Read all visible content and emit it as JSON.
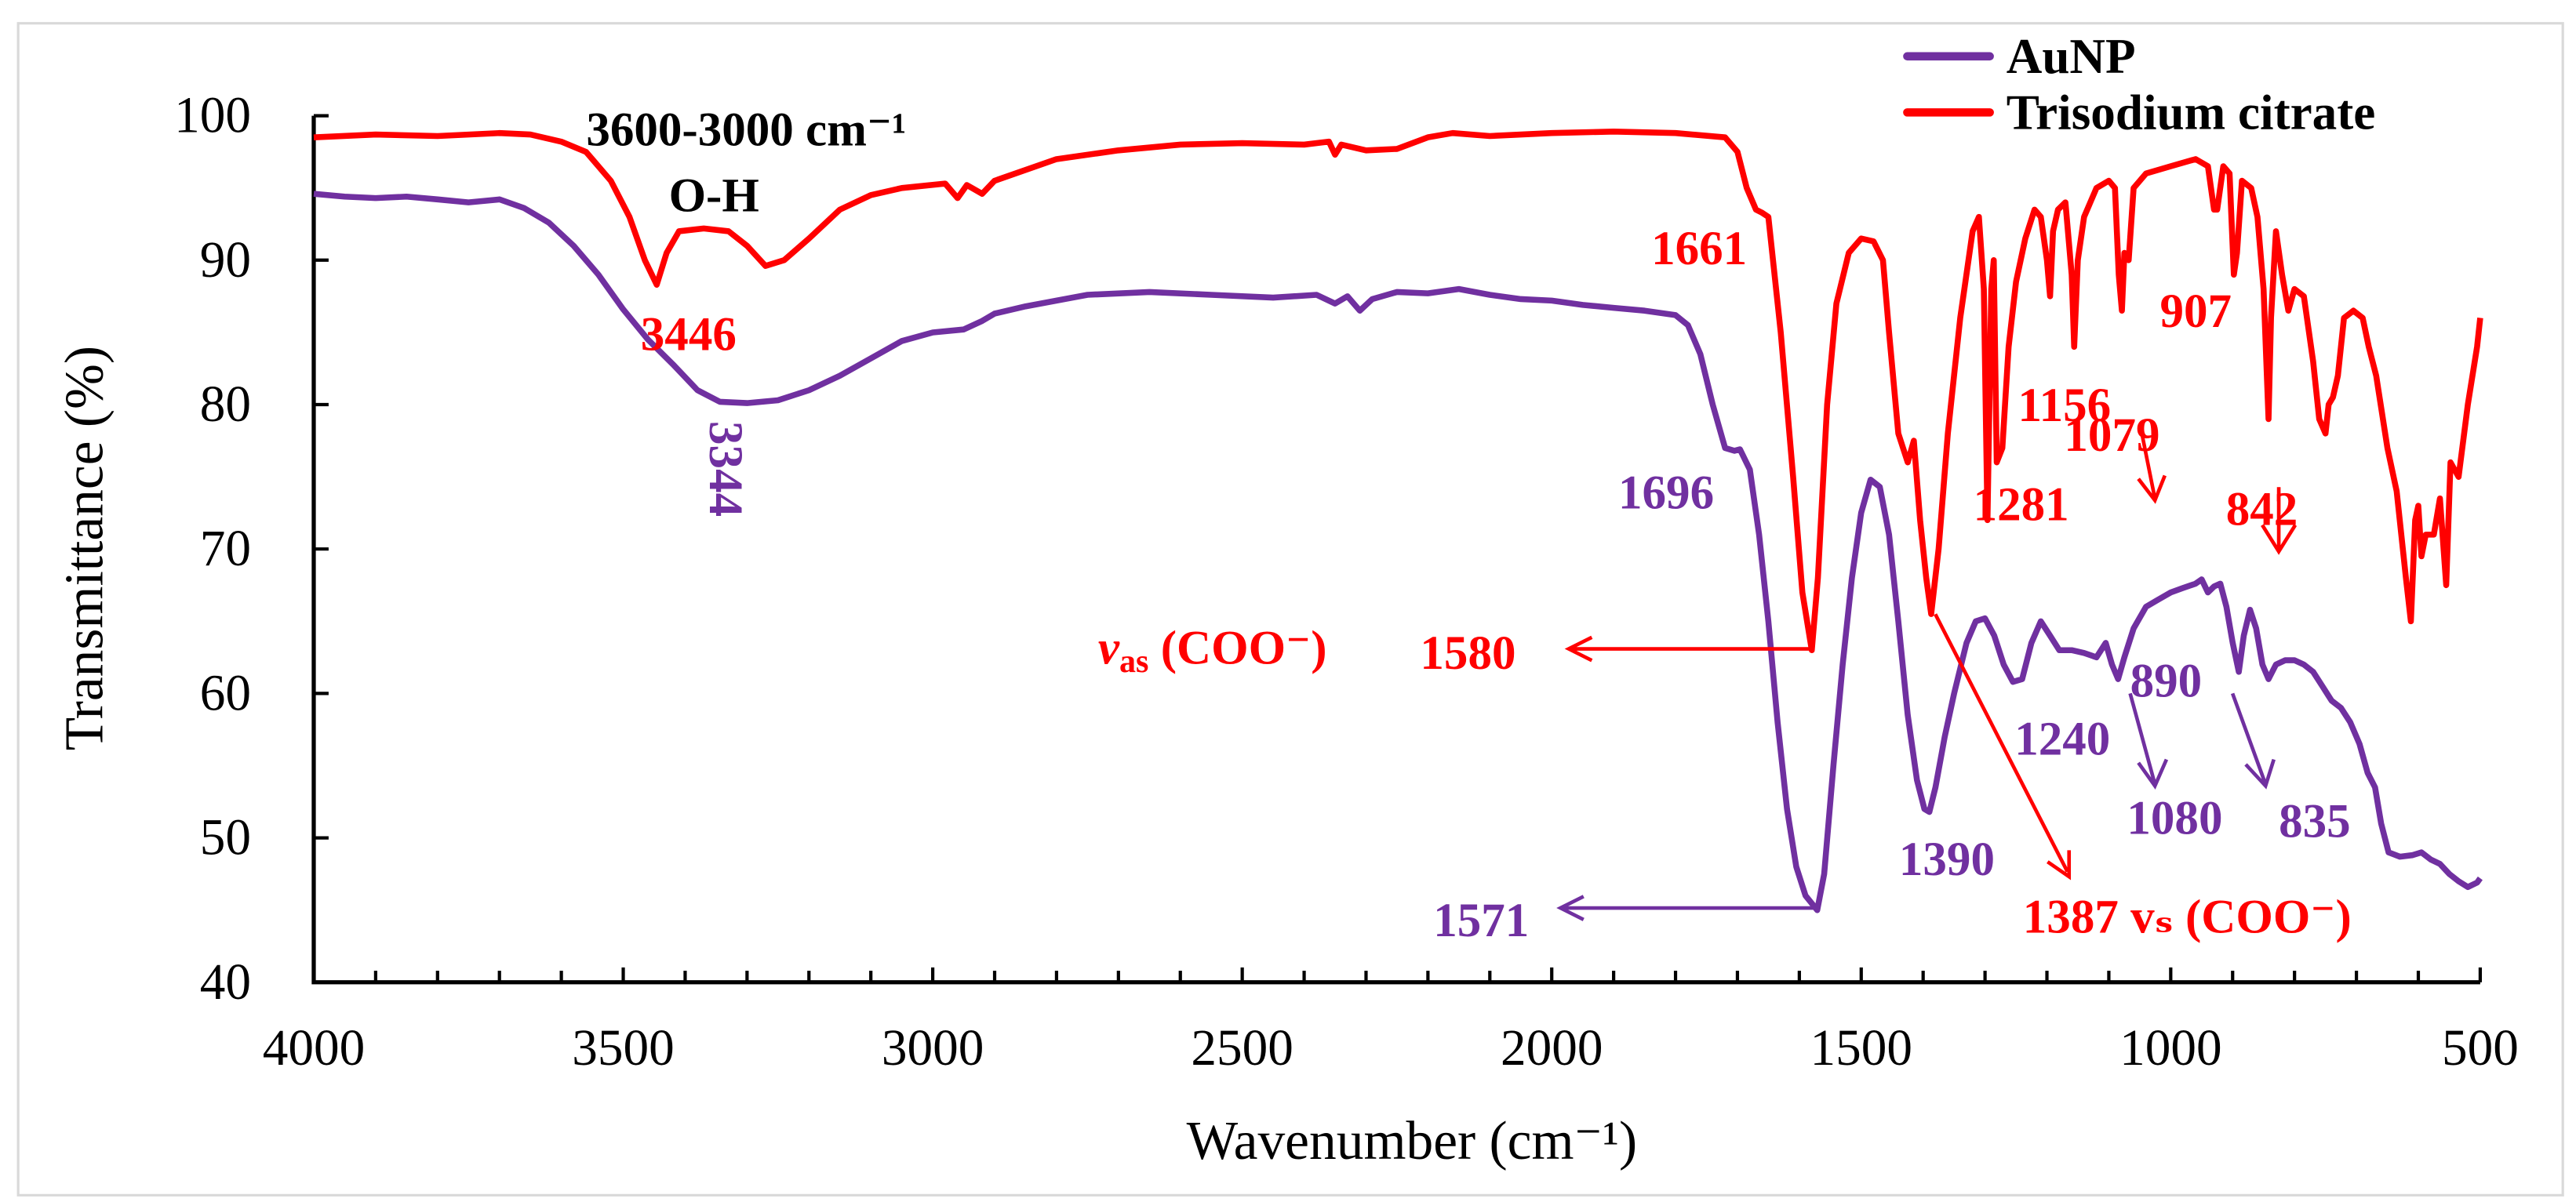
{
  "chart_data": {
    "type": "line",
    "xlabel": "Wavenumber (cm⁻¹)",
    "ylabel": "Transmittance (%)",
    "xlim": [
      4000,
      500
    ],
    "ylim": [
      40,
      100
    ],
    "x_reversed": true,
    "grid": false,
    "legend_position": "top-right",
    "x_ticks": [
      "4000",
      "3500",
      "3000",
      "2500",
      "2000",
      "1500",
      "1000",
      "500"
    ],
    "y_ticks": [
      "100",
      "90",
      "80",
      "70",
      "60",
      "50",
      "40"
    ],
    "series": [
      {
        "name": "AuNP",
        "color": "#7030a0",
        "points": [
          [
            4000,
            94.6
          ],
          [
            3950,
            94.4
          ],
          [
            3900,
            94.3
          ],
          [
            3850,
            94.4
          ],
          [
            3800,
            94.2
          ],
          [
            3750,
            94.0
          ],
          [
            3700,
            94.2
          ],
          [
            3660,
            93.6
          ],
          [
            3620,
            92.6
          ],
          [
            3580,
            91.0
          ],
          [
            3540,
            89.0
          ],
          [
            3500,
            86.6
          ],
          [
            3460,
            84.5
          ],
          [
            3420,
            82.8
          ],
          [
            3380,
            81.0
          ],
          [
            3344,
            80.2
          ],
          [
            3300,
            80.1
          ],
          [
            3250,
            80.3
          ],
          [
            3200,
            81.0
          ],
          [
            3150,
            82.0
          ],
          [
            3100,
            83.2
          ],
          [
            3050,
            84.4
          ],
          [
            3000,
            85.0
          ],
          [
            2950,
            85.2
          ],
          [
            2920,
            85.8
          ],
          [
            2900,
            86.3
          ],
          [
            2850,
            86.8
          ],
          [
            2800,
            87.2
          ],
          [
            2750,
            87.6
          ],
          [
            2650,
            87.8
          ],
          [
            2550,
            87.6
          ],
          [
            2450,
            87.4
          ],
          [
            2380,
            87.6
          ],
          [
            2350,
            87.0
          ],
          [
            2330,
            87.5
          ],
          [
            2310,
            86.5
          ],
          [
            2290,
            87.3
          ],
          [
            2250,
            87.8
          ],
          [
            2200,
            87.7
          ],
          [
            2150,
            88.0
          ],
          [
            2100,
            87.6
          ],
          [
            2050,
            87.3
          ],
          [
            2000,
            87.2
          ],
          [
            1950,
            86.9
          ],
          [
            1900,
            86.7
          ],
          [
            1850,
            86.5
          ],
          [
            1800,
            86.2
          ],
          [
            1780,
            85.5
          ],
          [
            1760,
            83.5
          ],
          [
            1740,
            80.0
          ],
          [
            1720,
            77.0
          ],
          [
            1705,
            76.8
          ],
          [
            1696,
            76.9
          ],
          [
            1680,
            75.5
          ],
          [
            1665,
            71.0
          ],
          [
            1650,
            65.0
          ],
          [
            1635,
            58.0
          ],
          [
            1620,
            52.0
          ],
          [
            1605,
            48.0
          ],
          [
            1590,
            46.0
          ],
          [
            1571,
            45.0
          ],
          [
            1560,
            47.5
          ],
          [
            1545,
            55.0
          ],
          [
            1530,
            62.0
          ],
          [
            1515,
            68.0
          ],
          [
            1500,
            72.5
          ],
          [
            1485,
            74.8
          ],
          [
            1470,
            74.3
          ],
          [
            1455,
            71.0
          ],
          [
            1440,
            65.0
          ],
          [
            1425,
            58.5
          ],
          [
            1410,
            54.0
          ],
          [
            1398,
            52.0
          ],
          [
            1390,
            51.8
          ],
          [
            1380,
            53.5
          ],
          [
            1365,
            57.0
          ],
          [
            1350,
            60.0
          ],
          [
            1330,
            63.5
          ],
          [
            1315,
            65.0
          ],
          [
            1300,
            65.2
          ],
          [
            1285,
            64.0
          ],
          [
            1270,
            62.0
          ],
          [
            1255,
            60.8
          ],
          [
            1240,
            61.0
          ],
          [
            1225,
            63.5
          ],
          [
            1210,
            65.0
          ],
          [
            1195,
            64.0
          ],
          [
            1180,
            63.0
          ],
          [
            1160,
            63.0
          ],
          [
            1140,
            62.8
          ],
          [
            1120,
            62.5
          ],
          [
            1105,
            63.5
          ],
          [
            1095,
            62.0
          ],
          [
            1085,
            61.0
          ],
          [
            1075,
            62.5
          ],
          [
            1060,
            64.5
          ],
          [
            1040,
            66.0
          ],
          [
            1020,
            66.5
          ],
          [
            1000,
            67.0
          ],
          [
            980,
            67.3
          ],
          [
            960,
            67.6
          ],
          [
            950,
            67.9
          ],
          [
            940,
            67.0
          ],
          [
            930,
            67.4
          ],
          [
            920,
            67.6
          ],
          [
            910,
            66.0
          ],
          [
            900,
            63.5
          ],
          [
            890,
            61.5
          ],
          [
            882,
            64.0
          ],
          [
            872,
            65.8
          ],
          [
            862,
            64.5
          ],
          [
            852,
            62.0
          ],
          [
            842,
            61.0
          ],
          [
            830,
            62.0
          ],
          [
            815,
            62.3
          ],
          [
            800,
            62.3
          ],
          [
            785,
            62.0
          ],
          [
            770,
            61.5
          ],
          [
            755,
            60.5
          ],
          [
            740,
            59.5
          ],
          [
            725,
            59.0
          ],
          [
            710,
            58.0
          ],
          [
            695,
            56.5
          ],
          [
            682,
            54.5
          ],
          [
            670,
            53.5
          ],
          [
            660,
            51.0
          ],
          [
            648,
            49.0
          ],
          [
            630,
            48.7
          ],
          [
            610,
            48.8
          ],
          [
            595,
            49.0
          ],
          [
            580,
            48.5
          ],
          [
            565,
            48.2
          ],
          [
            550,
            47.5
          ],
          [
            535,
            47.0
          ],
          [
            520,
            46.6
          ],
          [
            505,
            46.9
          ],
          [
            500,
            47.2
          ]
        ]
      },
      {
        "name": "Trisodium citrate",
        "color": "#ff0000",
        "points": [
          [
            4000,
            98.5
          ],
          [
            3900,
            98.7
          ],
          [
            3800,
            98.6
          ],
          [
            3700,
            98.8
          ],
          [
            3650,
            98.7
          ],
          [
            3600,
            98.2
          ],
          [
            3560,
            97.5
          ],
          [
            3520,
            95.5
          ],
          [
            3490,
            93.0
          ],
          [
            3465,
            90.0
          ],
          [
            3446,
            88.3
          ],
          [
            3430,
            90.5
          ],
          [
            3410,
            92.0
          ],
          [
            3370,
            92.2
          ],
          [
            3330,
            92.0
          ],
          [
            3300,
            91.0
          ],
          [
            3270,
            89.6
          ],
          [
            3240,
            90.0
          ],
          [
            3200,
            91.5
          ],
          [
            3150,
            93.5
          ],
          [
            3100,
            94.5
          ],
          [
            3050,
            95.0
          ],
          [
            2980,
            95.3
          ],
          [
            2960,
            94.3
          ],
          [
            2945,
            95.2
          ],
          [
            2920,
            94.6
          ],
          [
            2900,
            95.5
          ],
          [
            2800,
            97.0
          ],
          [
            2700,
            97.6
          ],
          [
            2600,
            98.0
          ],
          [
            2500,
            98.1
          ],
          [
            2400,
            98.0
          ],
          [
            2360,
            98.2
          ],
          [
            2350,
            97.3
          ],
          [
            2340,
            98.0
          ],
          [
            2300,
            97.6
          ],
          [
            2250,
            97.7
          ],
          [
            2200,
            98.5
          ],
          [
            2160,
            98.8
          ],
          [
            2100,
            98.6
          ],
          [
            2000,
            98.8
          ],
          [
            1900,
            98.9
          ],
          [
            1800,
            98.8
          ],
          [
            1720,
            98.5
          ],
          [
            1700,
            97.5
          ],
          [
            1685,
            95.0
          ],
          [
            1670,
            93.5
          ],
          [
            1661,
            93.3
          ],
          [
            1650,
            93.0
          ],
          [
            1630,
            85.0
          ],
          [
            1610,
            75.0
          ],
          [
            1595,
            67.0
          ],
          [
            1580,
            63.0
          ],
          [
            1570,
            68.0
          ],
          [
            1555,
            80.0
          ],
          [
            1540,
            87.0
          ],
          [
            1520,
            90.5
          ],
          [
            1500,
            91.5
          ],
          [
            1480,
            91.3
          ],
          [
            1465,
            90.0
          ],
          [
            1455,
            85.0
          ],
          [
            1440,
            78.0
          ],
          [
            1425,
            76.0
          ],
          [
            1415,
            77.5
          ],
          [
            1405,
            72.0
          ],
          [
            1395,
            68.0
          ],
          [
            1387,
            65.5
          ],
          [
            1375,
            70.0
          ],
          [
            1360,
            78.0
          ],
          [
            1340,
            86.0
          ],
          [
            1320,
            92.0
          ],
          [
            1310,
            93.0
          ],
          [
            1302,
            88.0
          ],
          [
            1296,
            72.0
          ],
          [
            1290,
            88.0
          ],
          [
            1286,
            90.0
          ],
          [
            1281,
            76.0
          ],
          [
            1272,
            77.0
          ],
          [
            1262,
            84.0
          ],
          [
            1250,
            88.5
          ],
          [
            1235,
            91.5
          ],
          [
            1220,
            93.5
          ],
          [
            1210,
            93.0
          ],
          [
            1200,
            90.0
          ],
          [
            1195,
            87.5
          ],
          [
            1190,
            92.0
          ],
          [
            1182,
            93.5
          ],
          [
            1170,
            94.0
          ],
          [
            1160,
            89.0
          ],
          [
            1156,
            84.0
          ],
          [
            1150,
            90.0
          ],
          [
            1140,
            93.0
          ],
          [
            1120,
            95.0
          ],
          [
            1100,
            95.5
          ],
          [
            1090,
            95.0
          ],
          [
            1084,
            89.0
          ],
          [
            1079,
            86.5
          ],
          [
            1075,
            90.5
          ],
          [
            1068,
            90.0
          ],
          [
            1060,
            95.0
          ],
          [
            1040,
            96.0
          ],
          [
            1000,
            96.5
          ],
          [
            960,
            97.0
          ],
          [
            940,
            96.5
          ],
          [
            930,
            93.5
          ],
          [
            925,
            93.5
          ],
          [
            915,
            96.5
          ],
          [
            905,
            96.0
          ],
          [
            898,
            89.0
          ],
          [
            893,
            90.5
          ],
          [
            885,
            95.5
          ],
          [
            870,
            95.0
          ],
          [
            860,
            93.0
          ],
          [
            850,
            88.0
          ],
          [
            842,
            79.0
          ],
          [
            838,
            86.0
          ],
          [
            830,
            92.0
          ],
          [
            820,
            89.0
          ],
          [
            810,
            86.5
          ],
          [
            800,
            88.0
          ],
          [
            785,
            87.5
          ],
          [
            770,
            83.0
          ],
          [
            760,
            79.0
          ],
          [
            750,
            78.0
          ],
          [
            745,
            80.0
          ],
          [
            738,
            80.5
          ],
          [
            730,
            82.0
          ],
          [
            720,
            86.0
          ],
          [
            705,
            86.5
          ],
          [
            690,
            86.0
          ],
          [
            680,
            84.0
          ],
          [
            668,
            82.0
          ],
          [
            650,
            77.0
          ],
          [
            635,
            74.0
          ],
          [
            620,
            68.0
          ],
          [
            612,
            65.0
          ],
          [
            605,
            72.0
          ],
          [
            600,
            73.0
          ],
          [
            595,
            69.5
          ],
          [
            588,
            71.0
          ],
          [
            575,
            71.0
          ],
          [
            565,
            73.5
          ],
          [
            555,
            67.5
          ],
          [
            548,
            76.0
          ],
          [
            535,
            75.0
          ],
          [
            520,
            80.0
          ],
          [
            505,
            84.0
          ],
          [
            500,
            86.0
          ]
        ]
      }
    ],
    "annotations": {
      "oh_range": "3600-3000 cm⁻¹",
      "oh_label": "O-H",
      "red_3446": "3446",
      "pur_3344": "3344",
      "red_1661": "1661",
      "pur_1696": "1696",
      "vas_v": "v",
      "vas_sub": "as",
      "vas_group": " (COO⁻)",
      "red_1580": "1580",
      "pur_1571": "1571",
      "pur_1390": "1390",
      "red_1387": "1387 vₛ (COO⁻)",
      "red_1281": "1281",
      "red_1156": "1156",
      "red_907": "907",
      "red_1079": "1079",
      "red_842": "842",
      "pur_1240": "1240",
      "pur_890": "890",
      "pur_1080": "1080",
      "pur_835": "835"
    }
  }
}
